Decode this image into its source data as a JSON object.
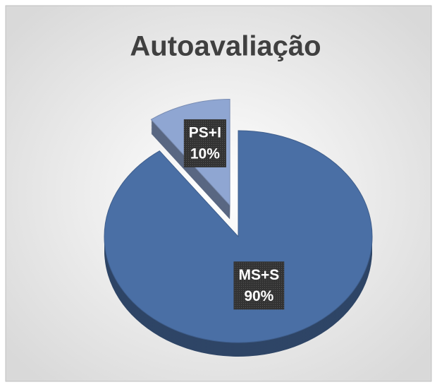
{
  "chart_data": {
    "type": "pie",
    "title": "Autoavaliação",
    "categories": [
      "MS+S",
      "PS+I"
    ],
    "values": [
      90,
      10
    ],
    "value_labels": [
      "90%",
      "10%"
    ],
    "colors": [
      "#4a6fa5",
      "#8fa6d2"
    ],
    "exploded": [
      false,
      true
    ]
  }
}
